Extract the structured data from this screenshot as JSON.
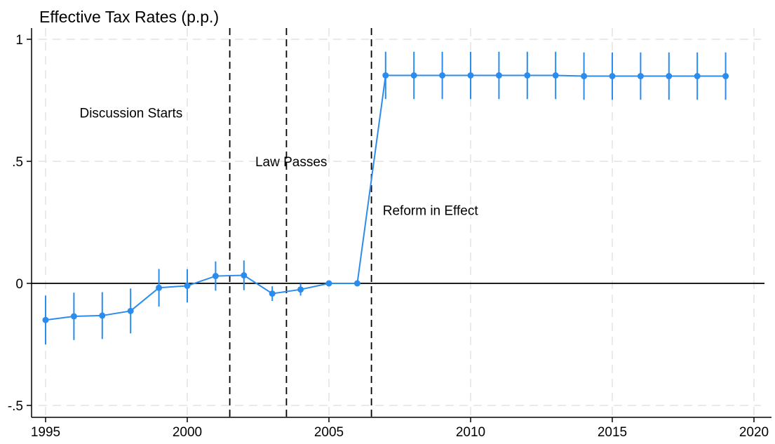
{
  "chart_data": {
    "type": "line",
    "title": "Effective Tax Rates (p.p.)",
    "xlabel": "",
    "ylabel": "",
    "xlim": [
      1995,
      2020
    ],
    "ylim": [
      -0.5,
      1
    ],
    "grid": true,
    "x_ticks": [
      1995,
      2000,
      2005,
      2010,
      2015,
      2020
    ],
    "x_tick_labels": [
      "1995",
      "2000",
      "2005",
      "2010",
      "2015",
      "2020"
    ],
    "y_ticks": [
      -0.5,
      0,
      0.5,
      1
    ],
    "y_tick_labels": [
      "-.5",
      "0",
      ".5",
      "1"
    ],
    "reference_line": {
      "y": 0,
      "color": "#000000"
    },
    "series": [
      {
        "color": "#2b8cee",
        "x": [
          1995,
          1996,
          1997,
          1998,
          1999,
          2000,
          2001,
          2002,
          2003,
          2004,
          2005,
          2006,
          2007,
          2008,
          2009,
          2010,
          2011,
          2012,
          2013,
          2014,
          2015,
          2016,
          2017,
          2018,
          2019
        ],
        "y": [
          -0.15,
          -0.135,
          -0.132,
          -0.113,
          -0.018,
          -0.01,
          0.03,
          0.033,
          -0.042,
          -0.025,
          0.0,
          0.0,
          0.852,
          0.852,
          0.852,
          0.852,
          0.852,
          0.852,
          0.852,
          0.849,
          0.849,
          0.849,
          0.849,
          0.849,
          0.849
        ],
        "ci_low": [
          -0.25,
          -0.232,
          -0.228,
          -0.205,
          -0.095,
          -0.078,
          -0.03,
          -0.028,
          -0.072,
          -0.05,
          0.0,
          0.0,
          0.755,
          0.755,
          0.755,
          0.755,
          0.755,
          0.755,
          0.755,
          0.752,
          0.752,
          0.752,
          0.752,
          0.752,
          0.752
        ],
        "ci_high": [
          -0.05,
          -0.038,
          -0.036,
          -0.021,
          0.059,
          0.058,
          0.09,
          0.094,
          -0.012,
          -0.001,
          0.0,
          0.0,
          0.949,
          0.949,
          0.949,
          0.949,
          0.949,
          0.949,
          0.949,
          0.946,
          0.946,
          0.946,
          0.946,
          0.946,
          0.946
        ]
      }
    ],
    "vertical_lines": [
      {
        "x": 2001.5,
        "style": "dashed"
      },
      {
        "x": 2003.5,
        "style": "dashed"
      },
      {
        "x": 2006.5,
        "style": "dashed"
      }
    ],
    "annotations": [
      {
        "text": "Discussion Starts",
        "x": 1996.2,
        "y": 0.7
      },
      {
        "text": "Law Passes",
        "x": 2002.4,
        "y": 0.5
      },
      {
        "text": "Reform in Effect",
        "x": 2006.9,
        "y": 0.3
      }
    ]
  }
}
